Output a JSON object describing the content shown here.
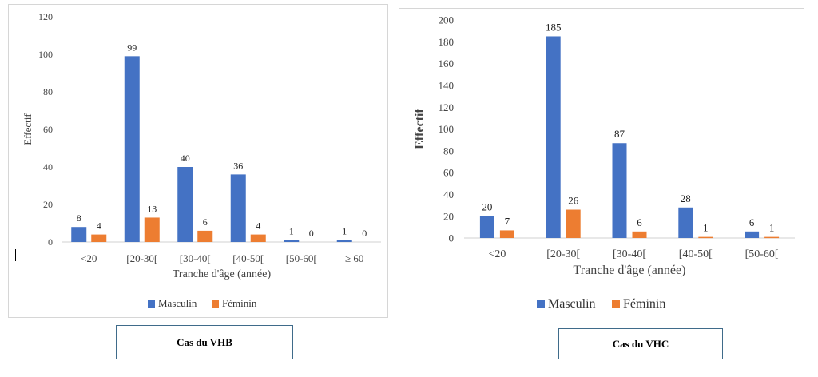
{
  "chart_data": [
    {
      "type": "bar",
      "categories": [
        "<20",
        "[20-30[",
        "[30-40[",
        "[40-50[",
        "[50-60[",
        "≥ 60"
      ],
      "series": [
        {
          "name": "Masculin",
          "values": [
            8,
            99,
            40,
            36,
            1,
            1
          ],
          "color": "#4472C4"
        },
        {
          "name": "Féminin",
          "values": [
            4,
            13,
            6,
            4,
            0,
            0
          ],
          "color": "#ED7D31"
        }
      ],
      "xlabel": "Tranche d'âge (année)",
      "ylabel": "Effectif",
      "ylim": [
        0,
        120
      ],
      "yticks": [
        0,
        20,
        40,
        60,
        80,
        100,
        120
      ],
      "legend": "bottom",
      "grid": false,
      "caption": "Cas du  VHB"
    },
    {
      "type": "bar",
      "categories": [
        "<20",
        "[20-30[",
        "[30-40[",
        "[40-50[",
        "[50-60["
      ],
      "series": [
        {
          "name": "Masculin",
          "values": [
            20,
            185,
            87,
            28,
            6
          ],
          "color": "#4472C4"
        },
        {
          "name": "Féminin",
          "values": [
            7,
            26,
            6,
            1,
            1
          ],
          "color": "#ED7D31"
        }
      ],
      "xlabel": "Tranche d'âge (année)",
      "ylabel": "Effectif",
      "ylim": [
        0,
        200
      ],
      "yticks": [
        0,
        20,
        40,
        60,
        80,
        100,
        120,
        140,
        160,
        180,
        200
      ],
      "legend": "bottom",
      "grid": false,
      "caption": "Cas du VHC"
    }
  ]
}
